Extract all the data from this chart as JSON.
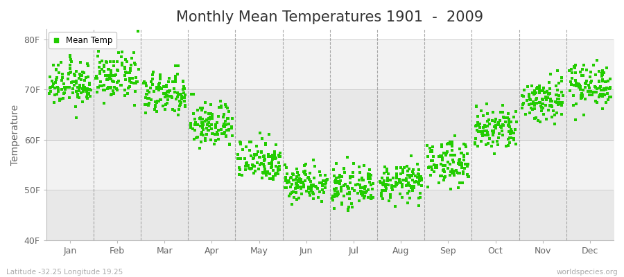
{
  "title": "Monthly Mean Temperatures 1901  -  2009",
  "ylabel": "Temperature",
  "ytick_labels": [
    "40F",
    "50F",
    "60F",
    "70F",
    "80F"
  ],
  "ytick_values": [
    40,
    50,
    60,
    70,
    80
  ],
  "ylim": [
    40,
    82
  ],
  "months": [
    "Jan",
    "Feb",
    "Mar",
    "Apr",
    "May",
    "Jun",
    "Jul",
    "Aug",
    "Sep",
    "Oct",
    "Nov",
    "Dec"
  ],
  "dot_color": "#22CC00",
  "fig_bg_color": "#FFFFFF",
  "plot_bg_color_light": "#F2F2F2",
  "plot_bg_color_dark": "#E8E8E8",
  "grid_color": "#888888",
  "title_fontsize": 15,
  "axis_label_fontsize": 10,
  "tick_label_fontsize": 9,
  "footer_left": "Latitude -32.25 Longitude 19.25",
  "footer_right": "worldspecies.org",
  "legend_label": "Mean Temp",
  "monthly_mean_temps": [
    71.0,
    72.5,
    69.0,
    63.0,
    56.0,
    51.5,
    50.5,
    51.5,
    55.5,
    62.0,
    68.0,
    71.0
  ],
  "monthly_std": [
    2.2,
    2.3,
    2.2,
    2.3,
    2.2,
    1.8,
    1.8,
    1.8,
    2.2,
    2.3,
    2.3,
    2.2
  ],
  "n_years": 109,
  "n_months": 12
}
